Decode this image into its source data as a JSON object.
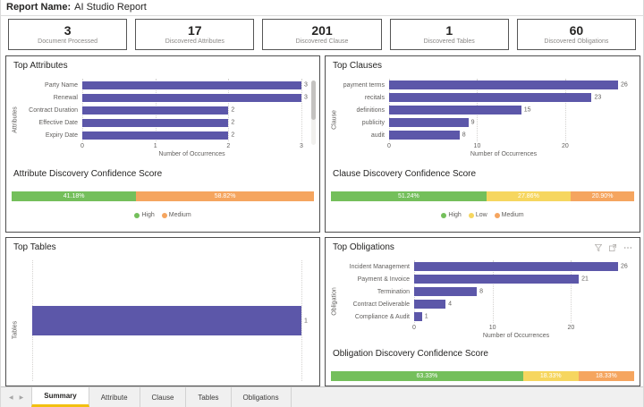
{
  "header": {
    "label": "Report Name:",
    "title": "AI Studio Report"
  },
  "kpis": [
    {
      "value": "3",
      "label": "Document Processed"
    },
    {
      "value": "17",
      "label": "Discovered Attributes"
    },
    {
      "value": "201",
      "label": "Discovered Clause"
    },
    {
      "value": "1",
      "label": "Discovered Tables"
    },
    {
      "value": "60",
      "label": "Discovered Obligations"
    }
  ],
  "colors": {
    "bar": "#5c57a9",
    "high": "#74bf5b",
    "low": "#f6d65f",
    "medium": "#f5a55f",
    "tab_accent": "#f2c010"
  },
  "chart_data": {
    "attributes": {
      "type": "bar",
      "title": "Top Attributes",
      "ylabel": "Attributes",
      "xlabel": "Number of Occurrences",
      "categories": [
        "Party Name",
        "Renewal",
        "Contract Duration",
        "Effective Date",
        "Expiry Date"
      ],
      "values": [
        3,
        3,
        2,
        2,
        2
      ],
      "ticks": [
        0,
        1,
        2,
        3
      ],
      "xlim": [
        0,
        3
      ]
    },
    "attributes_confidence": {
      "type": "stacked-bar",
      "title": "Attribute Discovery Confidence Score",
      "segments": [
        {
          "label": "41.18%",
          "value": 41.18,
          "color": "high"
        },
        {
          "label": "58.82%",
          "value": 58.82,
          "color": "medium"
        }
      ],
      "legend": [
        {
          "name": "High",
          "color": "high"
        },
        {
          "name": "Medium",
          "color": "medium"
        }
      ]
    },
    "clauses": {
      "type": "bar",
      "title": "Top Clauses",
      "ylabel": "Clause",
      "xlabel": "Number of Occurrences",
      "categories": [
        "payment terms",
        "recitals",
        "definitions",
        "publicity",
        "audit"
      ],
      "values": [
        26,
        23,
        15,
        9,
        8
      ],
      "ticks": [
        0,
        10,
        20
      ],
      "xlim": [
        0,
        26
      ]
    },
    "clauses_confidence": {
      "type": "stacked-bar",
      "title": "Clause Discovery Confidence Score",
      "segments": [
        {
          "label": "51.24%",
          "value": 51.24,
          "color": "high"
        },
        {
          "label": "27.86%",
          "value": 27.86,
          "color": "low"
        },
        {
          "label": "20.90%",
          "value": 20.9,
          "color": "medium"
        }
      ],
      "legend": [
        {
          "name": "High",
          "color": "high"
        },
        {
          "name": "Low",
          "color": "low"
        },
        {
          "name": "Medium",
          "color": "medium"
        }
      ]
    },
    "tables": {
      "type": "bar",
      "title": "Top Tables",
      "ylabel": "Tables",
      "xlabel": "",
      "categories": [
        ""
      ],
      "values": [
        1
      ],
      "ticks": [
        0,
        1
      ],
      "xlim": [
        0,
        1
      ],
      "show_tick_labels": false
    },
    "obligations": {
      "type": "bar",
      "title": "Top Obligations",
      "ylabel": "Obligation",
      "xlabel": "Number of Occurrences",
      "categories": [
        "Incident Management",
        "Payment & Invoice",
        "Termination",
        "Contract Deliverable",
        "Compliance & Audit"
      ],
      "values": [
        26,
        21,
        8,
        4,
        1
      ],
      "ticks": [
        0,
        10,
        20
      ],
      "xlim": [
        0,
        26
      ]
    },
    "obligations_confidence": {
      "type": "stacked-bar",
      "title": "Obligation Discovery Confidence Score",
      "segments": [
        {
          "label": "63.33%",
          "value": 63.33,
          "color": "high"
        },
        {
          "label": "18.33%",
          "value": 18.33,
          "color": "low"
        },
        {
          "label": "18.33%",
          "value": 18.33,
          "color": "medium"
        }
      ]
    }
  },
  "panel_action_icons": [
    "filter",
    "focus-mode",
    "more-options"
  ],
  "tabs": {
    "nav_prev": "◀",
    "nav_next": "▶",
    "items": [
      {
        "label": "Summary",
        "active": true
      },
      {
        "label": "Attribute",
        "active": false
      },
      {
        "label": "Clause",
        "active": false
      },
      {
        "label": "Tables",
        "active": false
      },
      {
        "label": "Obligations",
        "active": false
      }
    ]
  }
}
